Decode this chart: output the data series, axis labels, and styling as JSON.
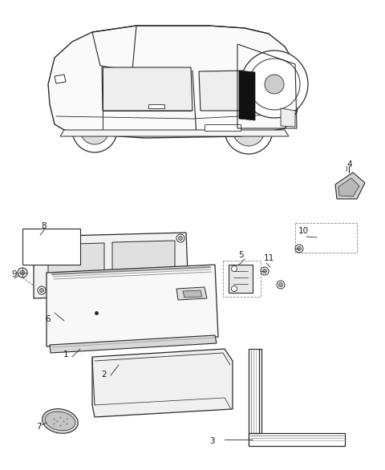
{
  "background_color": "#ffffff",
  "fig_width": 4.8,
  "fig_height": 5.86,
  "dpi": 100,
  "line_color": "#2a2a2a",
  "gray_fill": "#f0f0f0",
  "dark_fill": "#c8c8c8",
  "label_color": "#1a1a1a",
  "font_size": 7.5
}
